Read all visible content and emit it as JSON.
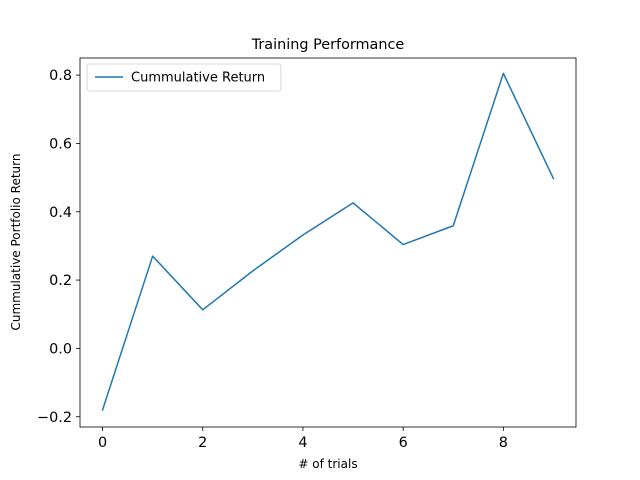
{
  "chart_data": {
    "type": "line",
    "title": "Training Performance",
    "xlabel": "# of trials",
    "ylabel": "Cummulative Portfolio Return",
    "xlim": [
      -0.45,
      9.45
    ],
    "ylim": [
      -0.23,
      0.85
    ],
    "xticks": [
      0,
      2,
      4,
      6,
      8
    ],
    "xtick_labels": [
      "0",
      "2",
      "4",
      "6",
      "8"
    ],
    "yticks": [
      -0.2,
      0.0,
      0.2,
      0.4,
      0.6,
      0.8
    ],
    "ytick_labels": [
      "−0.2",
      "0.0",
      "0.2",
      "0.4",
      "0.6",
      "0.8"
    ],
    "grid": false,
    "legend": {
      "position": "top-left"
    },
    "series": [
      {
        "name": "Cummulative Return",
        "color": "#1f77b4",
        "x": [
          0,
          1,
          2,
          3,
          4,
          5,
          6,
          7,
          8,
          9
        ],
        "y": [
          -0.18,
          0.27,
          0.113,
          0.227,
          0.332,
          0.426,
          0.304,
          0.359,
          0.805,
          0.497
        ]
      }
    ]
  }
}
